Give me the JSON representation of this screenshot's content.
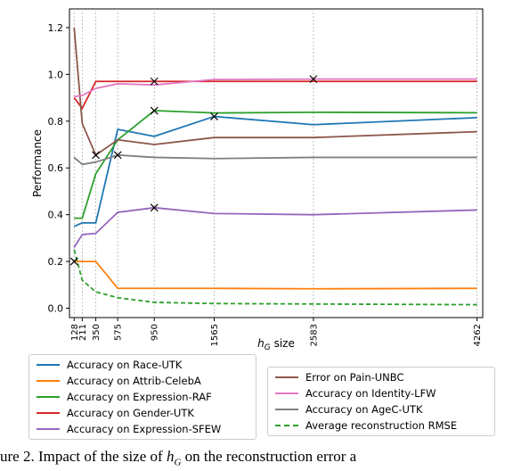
{
  "chart_data": {
    "type": "line",
    "xlabel": "h_G size",
    "ylabel": "Performance",
    "x": [
      128,
      211,
      350,
      575,
      950,
      1565,
      2583,
      4262
    ],
    "xlim": [
      80,
      4320
    ],
    "ylim": [
      -0.04,
      1.28
    ],
    "yticks": [
      0.0,
      0.2,
      0.4,
      0.6,
      0.8,
      1.0,
      1.2
    ],
    "xtick_labels": [
      "128",
      "211",
      "350",
      "575",
      "950",
      "1565",
      "2583",
      "4262"
    ],
    "grid": "vertical dotted lines at x ticks",
    "legend_placement": "bottom, two boxes",
    "series": [
      {
        "name": "Accuracy on Race-UTK",
        "color": "#1f77b4",
        "dash": false,
        "values": [
          0.35,
          0.365,
          0.365,
          0.765,
          0.735,
          0.82,
          0.785,
          0.815
        ],
        "marker_index": 5
      },
      {
        "name": "Accuracy on Attrib-CelebA",
        "color": "#ff7f0e",
        "dash": false,
        "values": [
          0.2,
          0.2,
          0.2,
          0.085,
          0.085,
          0.085,
          0.083,
          0.085
        ],
        "marker_index": 0
      },
      {
        "name": "Accuracy on Expression-RAF",
        "color": "#2ca02c",
        "dash": false,
        "values": [
          0.385,
          0.385,
          0.575,
          0.72,
          0.845,
          0.835,
          0.838,
          0.836
        ],
        "marker_index": 4
      },
      {
        "name": "Accuracy on Gender-UTK",
        "color": "#d62728",
        "dash": false,
        "values": [
          0.9,
          0.855,
          0.97,
          0.97,
          0.97,
          0.97,
          0.97,
          0.97
        ],
        "marker_index": 4
      },
      {
        "name": "Accuracy on Expression-SFEW",
        "color": "#9467bd",
        "dash": false,
        "values": [
          0.26,
          0.315,
          0.32,
          0.41,
          0.43,
          0.405,
          0.4,
          0.42
        ],
        "marker_index": 4
      },
      {
        "name": "Error on Pain-UNBC",
        "color": "#8c564b",
        "dash": false,
        "values": [
          1.2,
          0.79,
          0.655,
          0.72,
          0.7,
          0.73,
          0.73,
          0.755
        ],
        "marker_index": 2
      },
      {
        "name": "Accuracy on Identity-LFW",
        "color": "#e377c2",
        "dash": false,
        "values": [
          0.905,
          0.91,
          0.94,
          0.96,
          0.955,
          0.978,
          0.98,
          0.98
        ],
        "marker_index": 6
      },
      {
        "name": "Accuracy on AgeC-UTK",
        "color": "#7f7f7f",
        "dash": false,
        "values": [
          0.645,
          0.615,
          0.625,
          0.655,
          0.645,
          0.64,
          0.645,
          0.645
        ],
        "marker_index": 3
      },
      {
        "name": "Average reconstruction RMSE",
        "color": "#2ca02c",
        "dash": true,
        "values": [
          0.25,
          0.12,
          0.07,
          0.045,
          0.025,
          0.02,
          0.018,
          0.015
        ],
        "marker_index": null
      }
    ]
  },
  "legend_left": [
    "Accuracy on Race-UTK",
    "Accuracy on Attrib-CelebA",
    "Accuracy on Expression-RAF",
    "Accuracy on Gender-UTK",
    "Accuracy on Expression-SFEW"
  ],
  "legend_right": [
    "Error on Pain-UNBC",
    "Accuracy on Identity-LFW",
    "Accuracy on AgeC-UTK",
    "Average reconstruction RMSE"
  ],
  "caption": {
    "prefix": "ure 2. Impact of the size of ",
    "symbol": "h",
    "symbol_sub": "G",
    "suffix": " on the reconstruction error a"
  }
}
